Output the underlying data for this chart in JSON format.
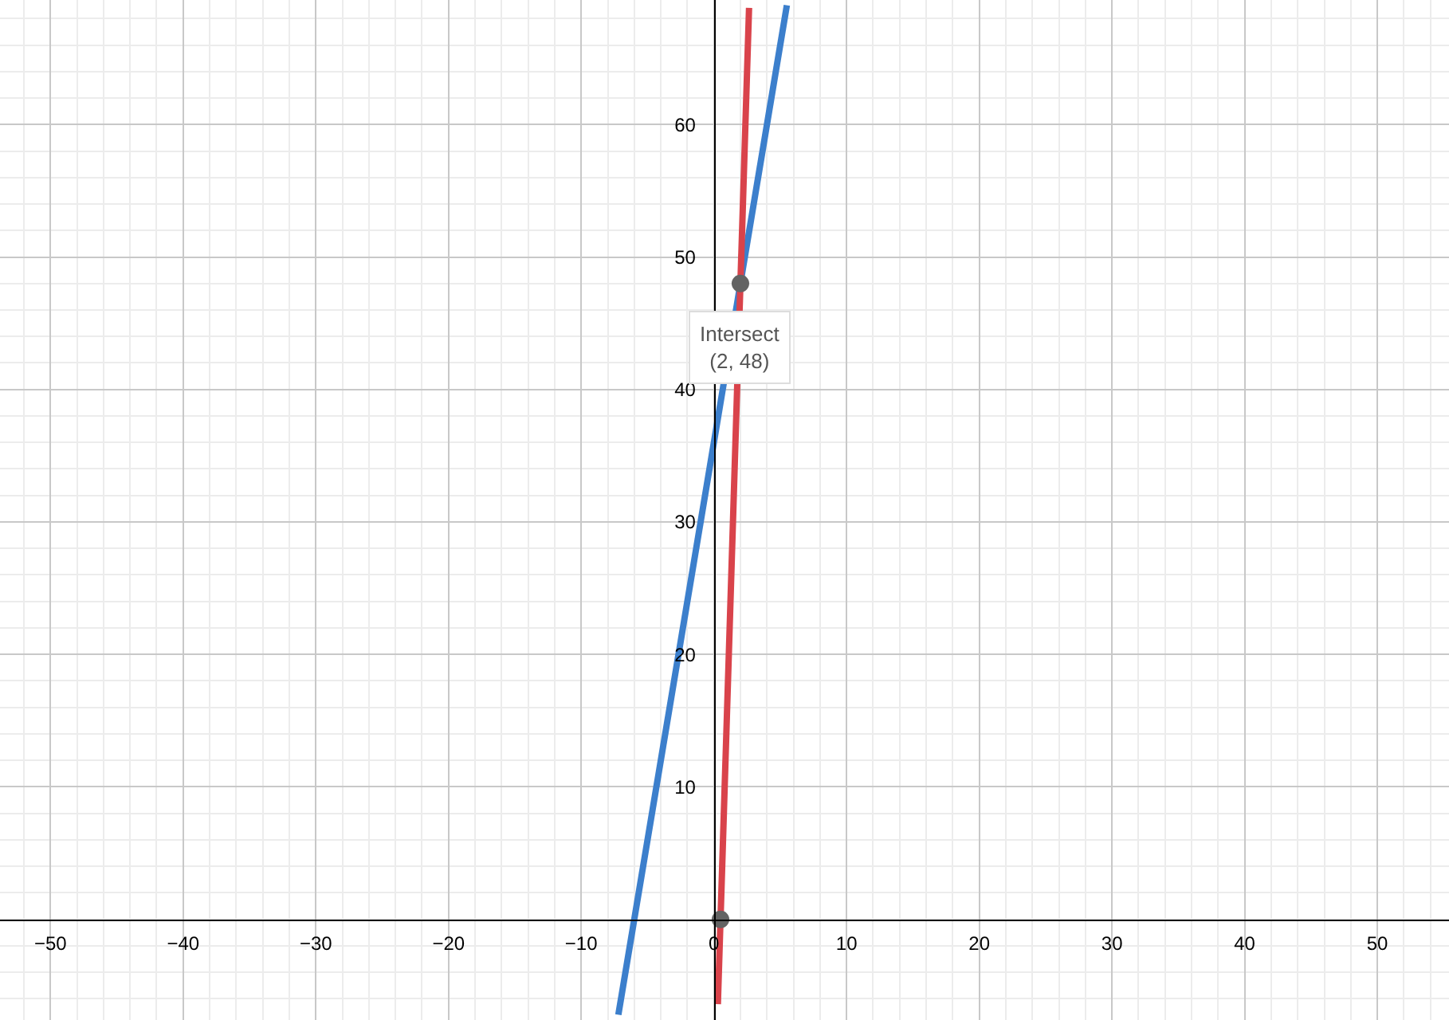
{
  "chart_data": {
    "type": "line",
    "series": [
      {
        "color": "#3c7fcc",
        "x": [
          -7.2,
          5.5
        ],
        "values": [
          -7.2,
          69
        ]
      },
      {
        "color": "#d9434b",
        "x": [
          0.3,
          2.65
        ],
        "values": [
          -6.4,
          68.8
        ]
      },
      {
        "type": "scatter",
        "color": "#636363",
        "x": [
          0.5,
          2
        ],
        "values": [
          0,
          48
        ]
      }
    ],
    "annotations": [
      {
        "text": "Intersect\n(2, 48)",
        "x": 2,
        "y": 48
      }
    ],
    "xlim": [
      -53.8,
      55.4
    ],
    "ylim": [
      -7.6,
      69.4
    ],
    "xticks": [
      -50,
      -40,
      -30,
      -20,
      -10,
      0,
      10,
      20,
      30,
      40,
      50
    ],
    "yticks": [
      10,
      20,
      30,
      40,
      50,
      60
    ],
    "grid": true
  }
}
